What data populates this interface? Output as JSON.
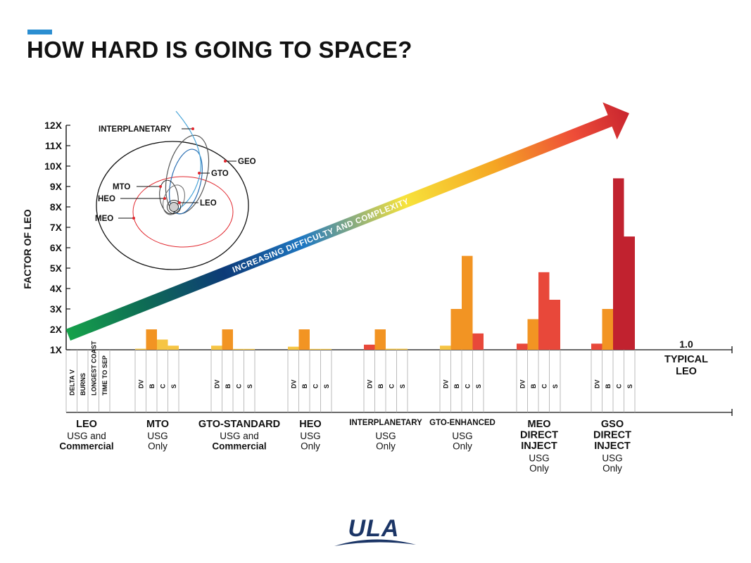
{
  "title": "HOW HARD IS GOING TO SPACE?",
  "colors": {
    "accent": "#2b8ed1",
    "bar_light": "#f6c544",
    "bar_orange": "#f29423",
    "bar_red": "#e8483a",
    "bar_darkred": "#c1222f",
    "commercial_red": "#e1262d",
    "logo_navy": "#1b3566"
  },
  "arrow_label": "INCREASING DIFFICULTY AND COMPLEXITY",
  "inset": {
    "labels": {
      "interplanetary": "INTERPLANETARY",
      "geo": "GEO",
      "gto": "GTO",
      "mto": "MTO",
      "heo": "HEO",
      "leo": "LEO",
      "meo": "MEO"
    }
  },
  "legend_metrics": [
    "DELTA V",
    "BURNS",
    "LONGEST COAST",
    "TIME TO SEP"
  ],
  "metric_abbrevs": [
    "DV",
    "B",
    "C",
    "S"
  ],
  "typical_leo": {
    "value_label": "1.0",
    "line1": "TYPICAL",
    "line2": "LEO"
  },
  "logo_text": "ULA",
  "chart_data": {
    "type": "bar",
    "ylabel": "FACTOR OF LEO",
    "ylim": [
      1,
      12
    ],
    "yticks": [
      "1X",
      "2X",
      "3X",
      "4X",
      "5X",
      "6X",
      "7X",
      "8X",
      "9X",
      "10X",
      "11X",
      "12X"
    ],
    "metrics": [
      "DV",
      "B",
      "C",
      "S"
    ],
    "groups": [
      {
        "name_lines": [
          "LEO"
        ],
        "usage_lines": [
          "USG and",
          "Commercial"
        ],
        "values": []
      },
      {
        "name_lines": [
          "MTO"
        ],
        "usage_lines": [
          "USG",
          "Only"
        ],
        "values": [
          1.05,
          2.0,
          1.5,
          1.2
        ]
      },
      {
        "name_lines": [
          "GTO-STANDARD"
        ],
        "usage_lines": [
          "USG and",
          "Commercial"
        ],
        "values": [
          1.2,
          2.0,
          1.0,
          1.0
        ]
      },
      {
        "name_lines": [
          "HEO"
        ],
        "usage_lines": [
          "USG",
          "Only"
        ],
        "values": [
          1.15,
          2.0,
          1.0,
          1.0
        ]
      },
      {
        "name_lines": [
          "INTERPLANETARY"
        ],
        "usage_lines": [
          "USG",
          "Only"
        ],
        "values": [
          1.25,
          2.0,
          1.05,
          1.05
        ]
      },
      {
        "name_lines": [
          "GTO-ENHANCED"
        ],
        "usage_lines": [
          "USG",
          "Only"
        ],
        "values": [
          1.2,
          3.0,
          5.6,
          1.8
        ]
      },
      {
        "name_lines": [
          "MEO",
          "DIRECT",
          "INJECT"
        ],
        "usage_lines": [
          "USG",
          "Only"
        ],
        "values": [
          1.3,
          2.5,
          4.8,
          3.45
        ]
      },
      {
        "name_lines": [
          "GSO",
          "DIRECT",
          "INJECT"
        ],
        "usage_lines": [
          "USG",
          "Only"
        ],
        "values": [
          1.3,
          3.0,
          9.4,
          6.55
        ]
      }
    ]
  }
}
